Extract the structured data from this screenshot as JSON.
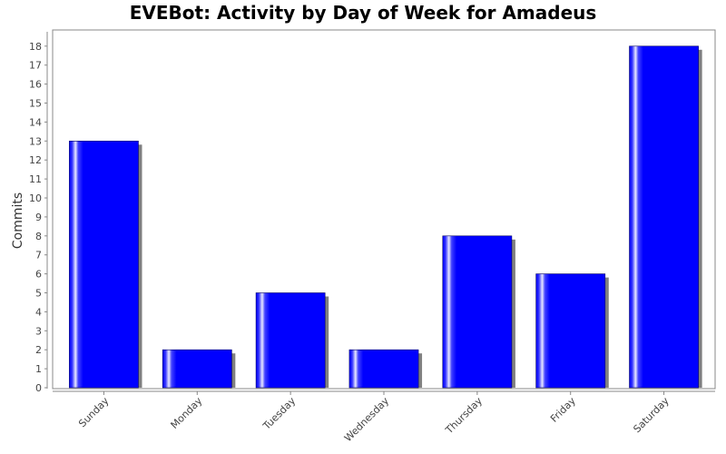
{
  "chart_data": {
    "type": "bar",
    "title": "EVEBot: Activity by Day of Week for Amadeus",
    "xlabel": "",
    "ylabel": "Commits",
    "categories": [
      "Sunday",
      "Monday",
      "Tuesday",
      "Wednesday",
      "Thursday",
      "Friday",
      "Saturday"
    ],
    "series": [
      {
        "values": [
          13,
          2,
          5,
          2,
          8,
          6,
          18
        ]
      }
    ],
    "ylim": [
      0,
      19
    ],
    "yticks": [
      0,
      1,
      2,
      3,
      4,
      5,
      6,
      7,
      8,
      9,
      10,
      11,
      12,
      13,
      14,
      15,
      16,
      17,
      18
    ],
    "grid": false,
    "legend": "none",
    "bar_color": "#0000ff",
    "bar_highlight_color": "#ffffff",
    "shadow_color": "#808080"
  }
}
